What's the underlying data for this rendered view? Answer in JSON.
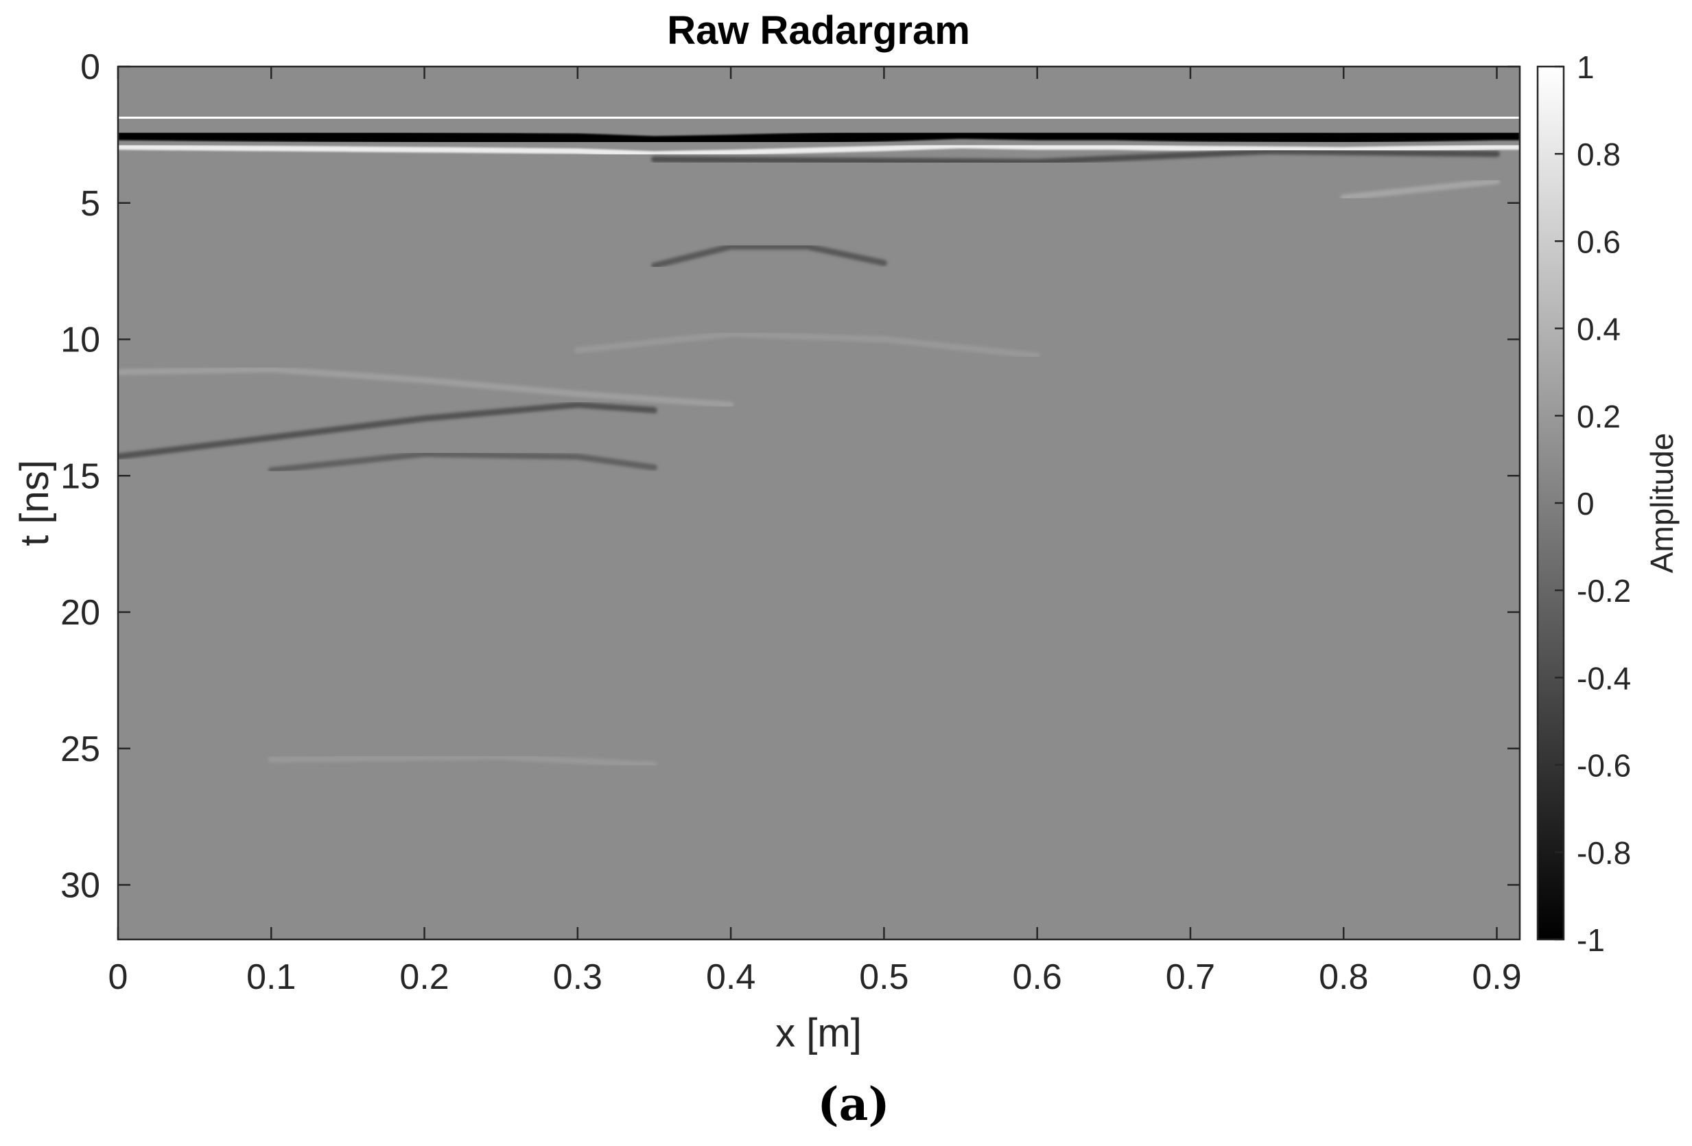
{
  "chart_data": {
    "type": "heatmap",
    "title": "Raw Radargram",
    "xlabel": "x [m]",
    "ylabel": "t [ns]",
    "colorbar_label": "Amplitude",
    "colormap": "gray",
    "xlim": [
      0,
      0.915
    ],
    "ylim": [
      0,
      32
    ],
    "y_reversed": true,
    "clim": [
      -1,
      1
    ],
    "background_amplitude": 0.1,
    "x_ticks": [
      "0",
      "0.1",
      "0.2",
      "0.3",
      "0.4",
      "0.5",
      "0.6",
      "0.7",
      "0.8",
      "0.9"
    ],
    "y_ticks": [
      "0",
      "5",
      "10",
      "15",
      "20",
      "25",
      "30"
    ],
    "colorbar_ticks": [
      "1",
      "0.8",
      "0.6",
      "0.4",
      "0.2",
      "0",
      "-0.2",
      "-0.4",
      "-0.6",
      "-0.8",
      "-1"
    ],
    "direct_wave": {
      "x": [
        0,
        0.1,
        0.2,
        0.3,
        0.35,
        0.4,
        0.5,
        0.55,
        0.6,
        0.65,
        0.7,
        0.8,
        0.9,
        0.915
      ],
      "positive_peak_t": [
        1.9,
        1.9,
        1.9,
        1.9,
        1.9,
        1.9,
        1.9,
        1.85,
        1.85,
        1.85,
        1.9,
        1.9,
        1.9,
        1.9
      ],
      "negative_peak_t": [
        2.5,
        2.55,
        2.6,
        2.65,
        2.75,
        2.7,
        2.55,
        2.45,
        2.5,
        2.5,
        2.55,
        2.6,
        2.5,
        2.5
      ]
    },
    "reflections": [
      {
        "x": [
          0,
          0.1,
          0.2,
          0.3,
          0.35
        ],
        "t": [
          14.3,
          13.6,
          12.9,
          12.4,
          12.6
        ],
        "amplitude": -0.35
      },
      {
        "x": [
          0,
          0.1,
          0.2,
          0.3,
          0.4
        ],
        "t": [
          11.2,
          11.1,
          11.5,
          12.0,
          12.4
        ],
        "amplitude": 0.25
      },
      {
        "x": [
          0.1,
          0.2,
          0.3,
          0.35
        ],
        "t": [
          14.8,
          14.2,
          14.3,
          14.7
        ],
        "amplitude": -0.25
      },
      {
        "x": [
          0.35,
          0.4,
          0.45,
          0.5
        ],
        "t": [
          7.3,
          6.6,
          6.6,
          7.2
        ],
        "amplitude": -0.3
      },
      {
        "x": [
          0.3,
          0.4,
          0.5,
          0.6
        ],
        "t": [
          10.4,
          9.8,
          10.0,
          10.6
        ],
        "amplitude": 0.2
      },
      {
        "x": [
          0.35,
          0.6,
          0.75,
          0.9
        ],
        "t": [
          3.4,
          3.5,
          3.1,
          3.2
        ],
        "amplitude": -0.4
      },
      {
        "x": [
          0.8,
          0.85,
          0.9
        ],
        "t": [
          4.8,
          4.5,
          4.2
        ],
        "amplitude": 0.3
      },
      {
        "x": [
          0.1,
          0.25,
          0.35
        ],
        "t": [
          25.4,
          25.3,
          25.6
        ],
        "amplitude": 0.2
      }
    ]
  },
  "panel_label": "(a)",
  "colors": {
    "axis": "#262626",
    "background": "#ffffff"
  }
}
